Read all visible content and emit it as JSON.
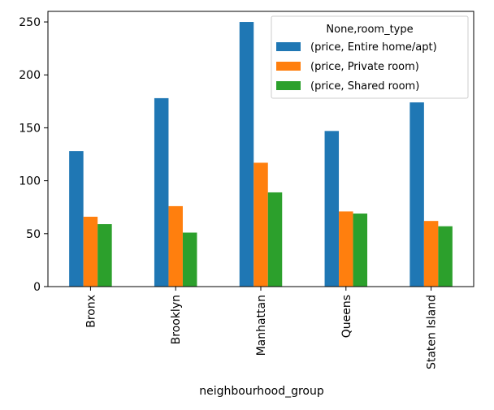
{
  "chart_data": {
    "type": "bar",
    "title": "",
    "xlabel": "neighbourhood_group",
    "ylabel": "",
    "categories": [
      "Bronx",
      "Brooklyn",
      "Manhattan",
      "Queens",
      "Staten Island"
    ],
    "series": [
      {
        "name": "(price, Entire home/apt)",
        "values": [
          128,
          178,
          250,
          147,
          174
        ],
        "color": "#1f77b4"
      },
      {
        "name": "(price, Private room)",
        "values": [
          66,
          76,
          117,
          71,
          62
        ],
        "color": "#ff7f0e"
      },
      {
        "name": "(price, Shared room)",
        "values": [
          59,
          51,
          89,
          69,
          57
        ],
        "color": "#2ca02c"
      }
    ],
    "ylim": [
      0,
      260
    ],
    "yticks": [
      0,
      50,
      100,
      150,
      200,
      250
    ],
    "legend": {
      "title": "None,room_type",
      "placement": "top-right"
    },
    "grid": false
  }
}
